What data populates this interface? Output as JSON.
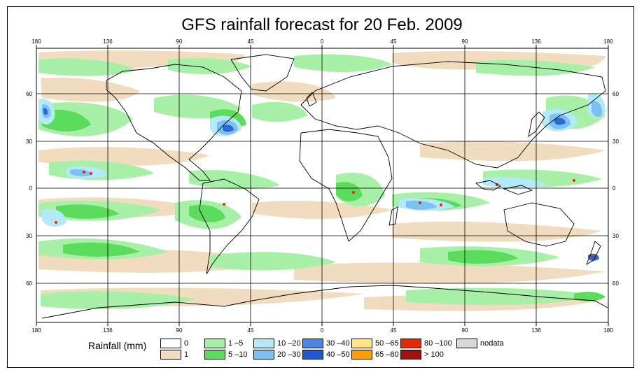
{
  "title": "GFS rainfall forecast for 20 Feb. 2009",
  "lon_ticks": [
    "180",
    "136",
    "90",
    "45",
    "0",
    "45",
    "90",
    "136",
    "180"
  ],
  "lat_ticks": [
    "60",
    "30",
    "0",
    "30",
    "60"
  ],
  "legend": {
    "title": "Rainfall (mm)",
    "items": [
      {
        "label": "0",
        "color": "#ffffff"
      },
      {
        "label": "1",
        "color": "#f2dcc0"
      },
      {
        "label": "1 –5",
        "color": "#a8f0a8"
      },
      {
        "label": "5 –10",
        "color": "#5cdc5c"
      },
      {
        "label": "10 –20",
        "color": "#b4eaf8"
      },
      {
        "label": "20 –30",
        "color": "#7ec0f0"
      },
      {
        "label": "30 –40",
        "color": "#4a86e8"
      },
      {
        "label": "40 –50",
        "color": "#1c5ad0"
      },
      {
        "label": "50 –65",
        "color": "#ffe680"
      },
      {
        "label": "65 –80",
        "color": "#ff9c00"
      },
      {
        "label": "80 –100",
        "color": "#e82800"
      },
      {
        "label": "> 100",
        "color": "#a01010"
      },
      {
        "label": "nodata",
        "color": "#d8d8d8"
      }
    ]
  }
}
